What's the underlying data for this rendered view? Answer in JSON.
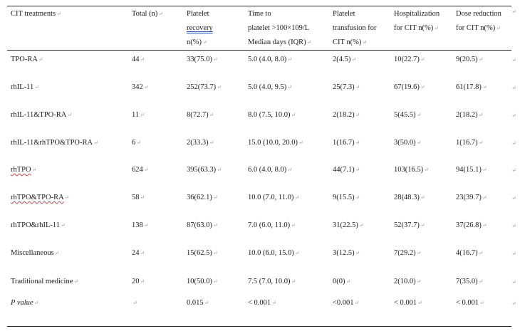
{
  "header": {
    "treatment": "CIT treatments",
    "total": "Total (n)",
    "recovery": [
      "Platelet",
      "recovery",
      "n(%)"
    ],
    "time": [
      "Time to",
      "platelet >100×109/L",
      "Median days (IQR)"
    ],
    "transfusion": [
      "Platelet",
      "transfusion for",
      "CIT n(%)"
    ],
    "hospitalization": [
      "Hospitalization",
      "for CIT n(%)"
    ],
    "dose": [
      "Dose reduction",
      "for CIT n(%)"
    ]
  },
  "rows": [
    {
      "name": "TPO-RA",
      "total": "44",
      "recovery": "33(75.0)",
      "time": "5.0 (4.0, 8.0)",
      "transfusion": "2(4.5)",
      "hosp": "10(22.7)",
      "dose": "9(20.5)"
    },
    {
      "name": "rhIL-11",
      "total": "342",
      "recovery": "252(73.7)",
      "time": "5.0 (4.0, 9.5)",
      "transfusion": "25(7.3)",
      "hosp": "67(19.6)",
      "dose": "61(17.8)"
    },
    {
      "name": "rhIL-11&TPO-RA",
      "total": "11",
      "recovery": "8(72.7)",
      "time": "8.0 (7.5, 10.0)",
      "transfusion": "2(18.2)",
      "hosp": "5(45.5)",
      "dose": "2(18.2)"
    },
    {
      "name": "rhIL-11&rhTPO&TPO-RA",
      "total": "6",
      "recovery": "2(33.3)",
      "time": "15.0 (10.0, 20.0)",
      "transfusion": "1(16.7)",
      "hosp": "3(50.0)",
      "dose": "1(16.7)"
    },
    {
      "name": "rhTPO",
      "total": "624",
      "recovery": "395(63.3)",
      "time": "6.0 (4.0, 8.0)",
      "transfusion": "44(7.1)",
      "hosp": "103(16.5)",
      "dose": "94(15.1)"
    },
    {
      "name": "rhTPO&TPO-RA",
      "total": "58",
      "recovery": "36(62.1)",
      "time": "10.0 (7.0, 11.0)",
      "transfusion": "9(15.5)",
      "hosp": "28(48.3)",
      "dose": "23(39.7)"
    },
    {
      "name": "rhTPO&rhIL-11",
      "total": "138",
      "recovery": "87(63.0)",
      "time": "7.0 (6.0, 11.0)",
      "transfusion": "31(22.5)",
      "hosp": "52(37.7)",
      "dose": "37(26.8)"
    },
    {
      "name": "Miscellaneous",
      "total": "24",
      "recovery": "15(62.5)",
      "time": "10.0 (6.0, 15.0)",
      "transfusion": "3(12.5)",
      "hosp": "7(29.2)",
      "dose": "4(16.7)"
    },
    {
      "name": "Traditional medicine",
      "total": "20",
      "recovery": "10(50.0)",
      "time": "7.5 (7.0, 10.0)",
      "transfusion": "0(0)",
      "hosp": "2(10.0)",
      "dose": "7(35.0)"
    },
    {
      "name": "P value",
      "total": "",
      "recovery": "0.015",
      "time": "< 0.001",
      "transfusion": "<0.001",
      "hosp": "< 0.001",
      "dose": "< 0.001"
    }
  ]
}
